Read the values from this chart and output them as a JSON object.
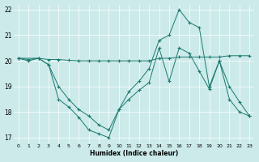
{
  "xlabel": "Humidex (Indice chaleur)",
  "bg_color": "#cceaea",
  "line_color": "#1a7a6e",
  "xlim": [
    -0.5,
    23.5
  ],
  "ylim": [
    16.8,
    22.2
  ],
  "yticks": [
    17,
    18,
    19,
    20,
    21,
    22
  ],
  "xticks": [
    0,
    1,
    2,
    3,
    4,
    5,
    6,
    7,
    8,
    9,
    10,
    11,
    12,
    13,
    14,
    15,
    16,
    17,
    18,
    19,
    20,
    21,
    22,
    23
  ],
  "series1_x": [
    0,
    1,
    2,
    3,
    4,
    5,
    6,
    7,
    8,
    9,
    10,
    11,
    12,
    13,
    14,
    15,
    16,
    17,
    18,
    19,
    20,
    21,
    22,
    23
  ],
  "series1_y": [
    20.1,
    20.0,
    20.1,
    19.85,
    18.5,
    18.2,
    17.8,
    17.3,
    17.15,
    17.0,
    18.1,
    18.5,
    18.85,
    19.15,
    20.5,
    19.2,
    20.5,
    20.3,
    19.6,
    18.9,
    20.0,
    18.5,
    18.0,
    17.85
  ],
  "series2_x": [
    0,
    1,
    2,
    3,
    4,
    5,
    6,
    7,
    8,
    9,
    10,
    11,
    12,
    13,
    14,
    15,
    16,
    17,
    18,
    19,
    20,
    21,
    22,
    23
  ],
  "series2_y": [
    20.1,
    20.05,
    20.1,
    20.05,
    20.05,
    20.02,
    20.0,
    20.0,
    20.0,
    20.0,
    20.0,
    20.0,
    20.0,
    20.0,
    20.1,
    20.1,
    20.15,
    20.15,
    20.15,
    20.15,
    20.15,
    20.2,
    20.2,
    20.2
  ],
  "series3_x": [
    0,
    2,
    3,
    4,
    5,
    6,
    7,
    8,
    9,
    10,
    11,
    12,
    13,
    14,
    15,
    16,
    17,
    18,
    19,
    20,
    21,
    22,
    23
  ],
  "series3_y": [
    20.1,
    20.1,
    19.85,
    19.0,
    18.5,
    18.1,
    17.85,
    17.5,
    17.3,
    18.1,
    18.8,
    19.2,
    19.7,
    20.8,
    21.0,
    22.0,
    21.5,
    21.3,
    19.0,
    20.0,
    19.0,
    18.4,
    17.85
  ]
}
